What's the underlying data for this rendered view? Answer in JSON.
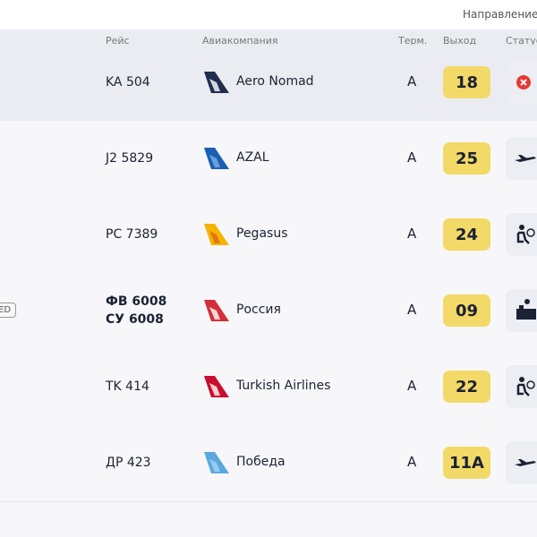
{
  "header": {
    "search_placeholder": "Направление,"
  },
  "table": {
    "columns": [
      "Рейс",
      "Авиакомпания",
      "Терм.",
      "Выход",
      "Статус"
    ],
    "rows": [
      {
        "flights": [
          "KA 504"
        ],
        "airline": "Aero Nomad",
        "terminal": "A",
        "gate": "18"
      },
      {
        "flights": [
          "J2 5829"
        ],
        "airline": "AZAL",
        "terminal": "A",
        "gate": "25"
      },
      {
        "flights": [
          "PC 7389"
        ],
        "airline": "Pegasus",
        "terminal": "A",
        "gate": "24"
      },
      {
        "flights": [
          "ФВ 6008",
          "СУ 6008"
        ],
        "airline": "Россия",
        "terminal": "A",
        "gate": "09",
        "badge": "ED"
      },
      {
        "flights": [
          "TK 414"
        ],
        "airline": "Turkish Airlines",
        "terminal": "A",
        "gate": "22"
      },
      {
        "flights": [
          "ДР 423"
        ],
        "airline": "Победа",
        "terminal": "A",
        "gate": "11A"
      }
    ]
  }
}
